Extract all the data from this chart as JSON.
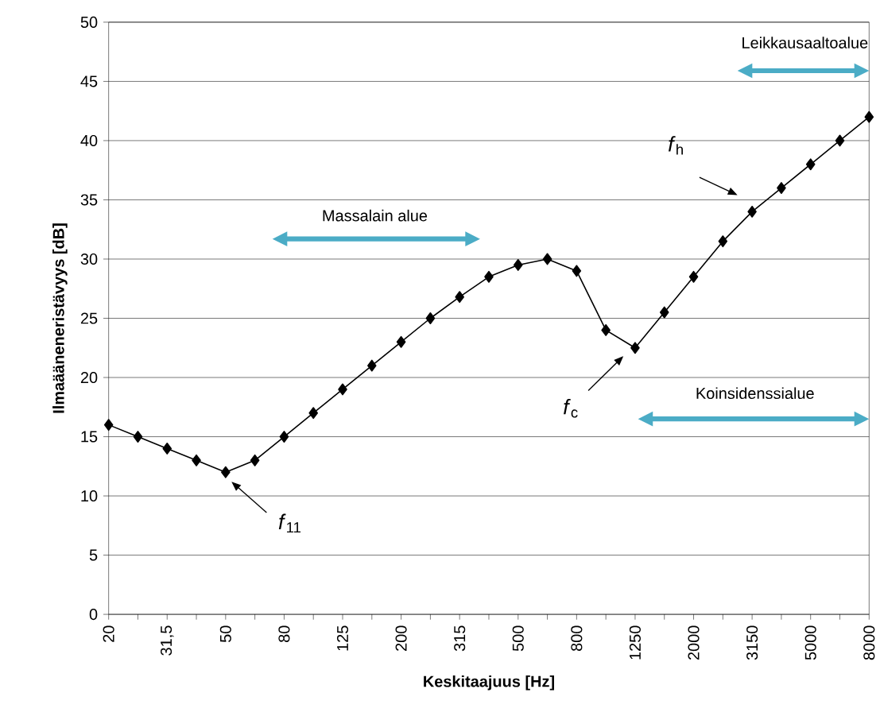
{
  "chart_data": {
    "type": "line",
    "xlabel": "Keskitaajuus [Hz]",
    "ylabel": "Ilmaääneneristävyys [dB]",
    "categories": [
      "20",
      null,
      "31,5",
      null,
      "50",
      null,
      "80",
      null,
      "125",
      null,
      "200",
      null,
      "315",
      null,
      "500",
      null,
      "800",
      null,
      "1250",
      null,
      "2000",
      null,
      "3150",
      null,
      "5000",
      null,
      "8000"
    ],
    "series": [
      {
        "color": "#000000",
        "values": [
          16,
          15,
          14,
          13,
          12,
          13,
          15,
          17,
          19,
          21,
          23,
          25,
          26.8,
          28.5,
          29.5,
          30,
          29,
          24,
          22.5,
          25.5,
          28.5,
          31.5,
          34,
          36,
          38,
          40,
          42
        ]
      }
    ],
    "ylim": [
      0,
      50
    ],
    "yticks": [
      0,
      5,
      10,
      15,
      20,
      25,
      30,
      35,
      40,
      45,
      50
    ],
    "grid": "y",
    "marker": "diamond",
    "line_style": "solid",
    "annotations": [
      "Massalain alue",
      "Leikkausaaltoalue",
      "Koinsidenssialue",
      "*f*$_{11}$",
      "*f*$_{c}$",
      "*f*$_{h}$"
    ]
  }
}
